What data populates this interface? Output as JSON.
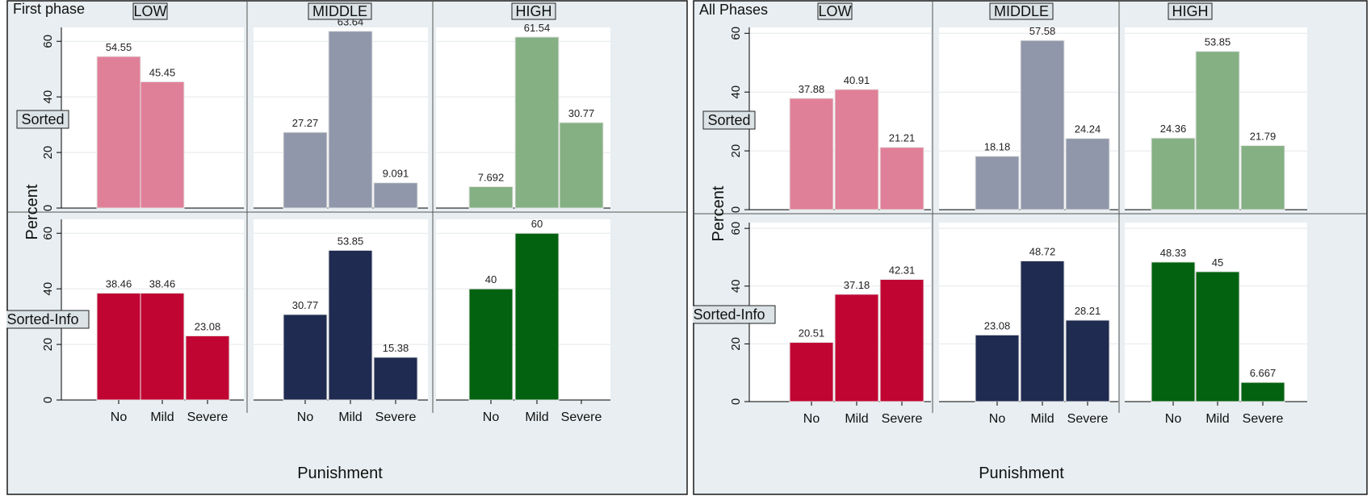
{
  "colors": {
    "figure_bg": "#e8eef1",
    "plot_bg": "#ffffff",
    "grid": "#e4e8ea",
    "border": "#1a1a1a",
    "LOW_Sorted": "#e08098",
    "MIDDLE_Sorted": "#9097aa",
    "HIGH_Sorted": "#84b083",
    "LOW_Sorted-Info": "#c10533",
    "MIDDLE_Sorted-Info": "#1f2b50",
    "HIGH_Sorted-Info": "#03620f"
  },
  "chart_data": [
    {
      "type": "bar",
      "title": "First phase",
      "xlabel": "Punishment",
      "ylabel": "Percent",
      "columns": [
        "LOW",
        "MIDDLE",
        "HIGH"
      ],
      "rows": [
        "Sorted",
        "Sorted-Info"
      ],
      "categories": [
        "No",
        "Mild",
        "Severe"
      ],
      "ylim": [
        0,
        65
      ],
      "yticks": [
        0,
        20,
        40,
        60
      ],
      "grid": true,
      "panels": [
        {
          "row": "Sorted",
          "column": "LOW",
          "values": [
            54.55,
            45.45,
            null
          ],
          "labels": [
            "54.55",
            "45.45",
            ""
          ]
        },
        {
          "row": "Sorted",
          "column": "MIDDLE",
          "values": [
            27.27,
            63.64,
            9.091
          ],
          "labels": [
            "27.27",
            "63.64",
            "9.091"
          ]
        },
        {
          "row": "Sorted",
          "column": "HIGH",
          "values": [
            7.692,
            61.54,
            30.77
          ],
          "labels": [
            "7.692",
            "61.54",
            "30.77"
          ]
        },
        {
          "row": "Sorted-Info",
          "column": "LOW",
          "values": [
            38.46,
            38.46,
            23.08
          ],
          "labels": [
            "38.46",
            "38.46",
            "23.08"
          ]
        },
        {
          "row": "Sorted-Info",
          "column": "MIDDLE",
          "values": [
            30.77,
            53.85,
            15.38
          ],
          "labels": [
            "30.77",
            "53.85",
            "15.38"
          ]
        },
        {
          "row": "Sorted-Info",
          "column": "HIGH",
          "values": [
            40,
            60,
            null
          ],
          "labels": [
            "40",
            "60",
            ""
          ]
        }
      ]
    },
    {
      "type": "bar",
      "title": "All Phases",
      "xlabel": "Punishment",
      "ylabel": "Percent",
      "columns": [
        "LOW",
        "MIDDLE",
        "HIGH"
      ],
      "rows": [
        "Sorted",
        "Sorted-Info"
      ],
      "categories": [
        "No",
        "Mild",
        "Severe"
      ],
      "ylim": [
        0,
        62
      ],
      "yticks": [
        0,
        20,
        40,
        60
      ],
      "grid": true,
      "panels": [
        {
          "row": "Sorted",
          "column": "LOW",
          "values": [
            37.88,
            40.91,
            21.21
          ],
          "labels": [
            "37.88",
            "40.91",
            "21.21"
          ]
        },
        {
          "row": "Sorted",
          "column": "MIDDLE",
          "values": [
            18.18,
            57.58,
            24.24
          ],
          "labels": [
            "18.18",
            "57.58",
            "24.24"
          ]
        },
        {
          "row": "Sorted",
          "column": "HIGH",
          "values": [
            24.36,
            53.85,
            21.79
          ],
          "labels": [
            "24.36",
            "53.85",
            "21.79"
          ]
        },
        {
          "row": "Sorted-Info",
          "column": "LOW",
          "values": [
            20.51,
            37.18,
            42.31
          ],
          "labels": [
            "20.51",
            "37.18",
            "42.31"
          ]
        },
        {
          "row": "Sorted-Info",
          "column": "MIDDLE",
          "values": [
            23.08,
            48.72,
            28.21
          ],
          "labels": [
            "23.08",
            "48.72",
            "28.21"
          ]
        },
        {
          "row": "Sorted-Info",
          "column": "HIGH",
          "values": [
            48.33,
            45,
            6.667
          ],
          "labels": [
            "48.33",
            "45",
            "6.667"
          ]
        }
      ]
    }
  ]
}
